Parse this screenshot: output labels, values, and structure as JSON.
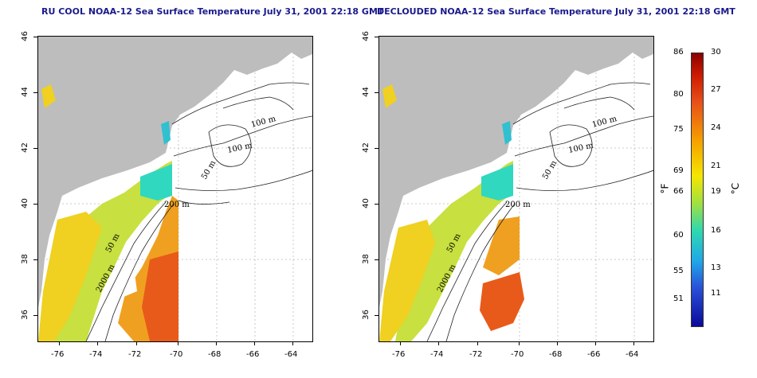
{
  "titles": {
    "left": "RU COOL NOAA-12 Sea Surface Temperature July 31, 2001 22:18 GMT",
    "right": "DECLOUDED NOAA-12 Sea Surface Temperature July 31, 2001 22:18 GMT"
  },
  "axes": {
    "x_ticks": [
      "-76",
      "-74",
      "-72",
      "-70",
      "-68",
      "-66",
      "-64"
    ],
    "y_ticks": [
      "36",
      "38",
      "40",
      "42",
      "44",
      "46"
    ]
  },
  "contour_labels": {
    "c100a": "100 m",
    "c100b": "100 m",
    "c50a": "50 m",
    "c200": "200 m",
    "c50b": "50 m",
    "c2000": "2000 m"
  },
  "colorbar": {
    "fahrenheit_unit": "°F",
    "celsius_unit": "°C",
    "fahrenheit": [
      "86",
      "80",
      "75",
      "69",
      "66",
      "60",
      "55",
      "51"
    ],
    "celsius": [
      "30",
      "27",
      "24",
      "21",
      "19",
      "16",
      "13",
      "11"
    ]
  },
  "colors": {
    "land": "#bdbdbd",
    "title": "#1a1a8c"
  }
}
